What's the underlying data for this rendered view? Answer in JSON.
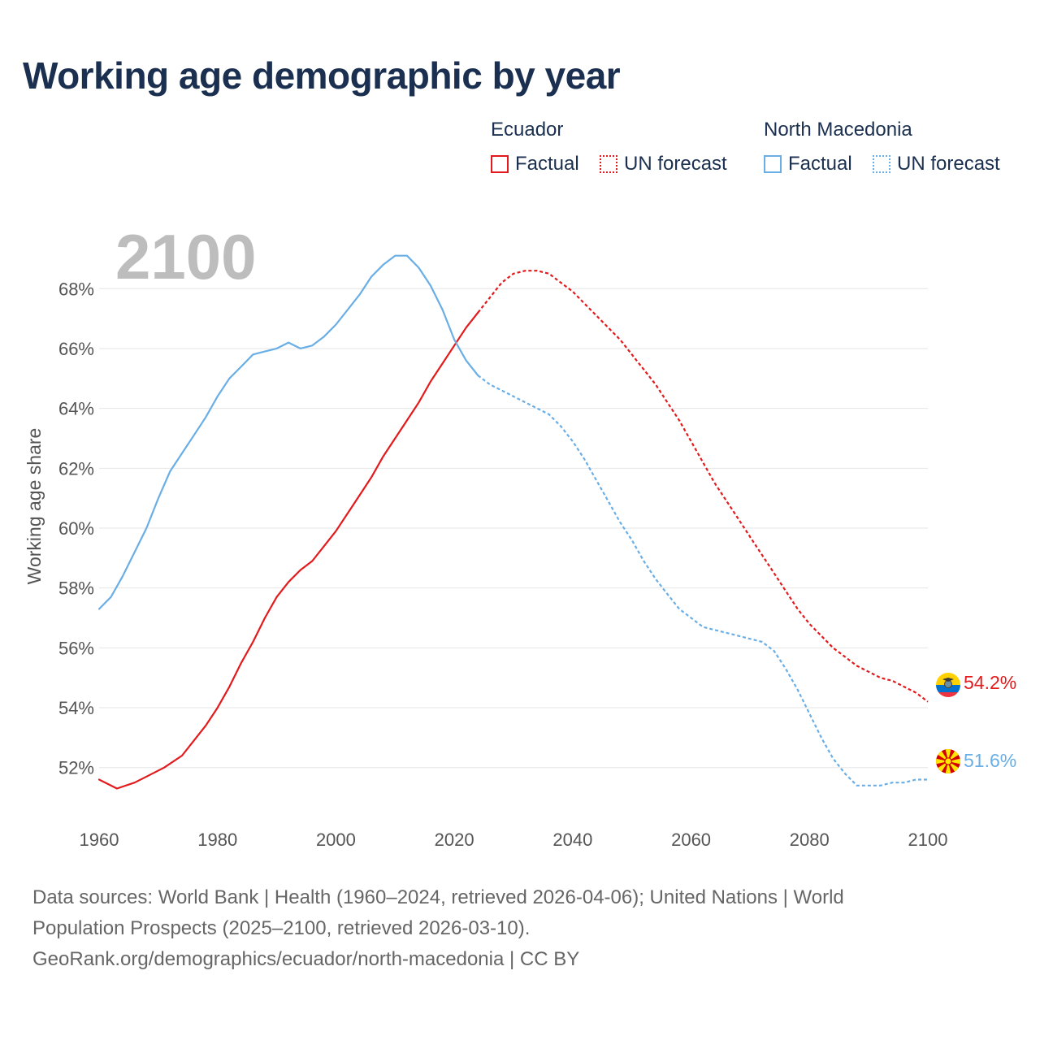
{
  "title": "Working age demographic by year",
  "legend": {
    "groups": [
      {
        "name": "Ecuador",
        "factual": "Factual",
        "forecast": "UN forecast",
        "color": "#e31a1c"
      },
      {
        "name": "North Macedonia",
        "factual": "Factual",
        "forecast": "UN forecast",
        "color": "#6aaee6"
      }
    ]
  },
  "year_label": "2100",
  "source": {
    "line1": "Data sources: World Bank | Health (1960–2024, retrieved 2026-04-06); United Nations | World",
    "line2": "Population Prospects (2025–2100, retrieved 2026-03-10).",
    "line3": "GeoRank.org/demographics/ecuador/north-macedonia | CC BY"
  },
  "chart_data": {
    "type": "line",
    "title": "Working age demographic by year",
    "xlabel": "",
    "ylabel": "Working age share",
    "xlim": [
      1960,
      2100
    ],
    "ylim": [
      50.5,
      69.5
    ],
    "x_ticks": [
      1960,
      1980,
      2000,
      2020,
      2040,
      2060,
      2080,
      2100
    ],
    "y_ticks": [
      52,
      54,
      56,
      58,
      60,
      62,
      64,
      66,
      68
    ],
    "y_tick_labels": [
      "52%",
      "54%",
      "56%",
      "58%",
      "60%",
      "62%",
      "64%",
      "66%",
      "68%"
    ],
    "factual_end": 2024,
    "grid": true,
    "series": [
      {
        "name": "Ecuador",
        "color": "#e31a1c",
        "end_label": "54.2%",
        "points": [
          [
            1960,
            51.6
          ],
          [
            1963,
            51.3
          ],
          [
            1966,
            51.5
          ],
          [
            1968,
            51.7
          ],
          [
            1971,
            52.0
          ],
          [
            1974,
            52.4
          ],
          [
            1976,
            52.9
          ],
          [
            1978,
            53.4
          ],
          [
            1980,
            54.0
          ],
          [
            1982,
            54.7
          ],
          [
            1984,
            55.5
          ],
          [
            1986,
            56.2
          ],
          [
            1988,
            57.0
          ],
          [
            1990,
            57.7
          ],
          [
            1992,
            58.2
          ],
          [
            1994,
            58.6
          ],
          [
            1996,
            58.9
          ],
          [
            1998,
            59.4
          ],
          [
            2000,
            59.9
          ],
          [
            2002,
            60.5
          ],
          [
            2004,
            61.1
          ],
          [
            2006,
            61.7
          ],
          [
            2008,
            62.4
          ],
          [
            2010,
            63.0
          ],
          [
            2012,
            63.6
          ],
          [
            2014,
            64.2
          ],
          [
            2016,
            64.9
          ],
          [
            2018,
            65.5
          ],
          [
            2020,
            66.1
          ],
          [
            2022,
            66.7
          ],
          [
            2024,
            67.2
          ],
          [
            2026,
            67.7
          ],
          [
            2028,
            68.2
          ],
          [
            2030,
            68.5
          ],
          [
            2032,
            68.6
          ],
          [
            2034,
            68.6
          ],
          [
            2036,
            68.5
          ],
          [
            2038,
            68.2
          ],
          [
            2040,
            67.9
          ],
          [
            2042,
            67.5
          ],
          [
            2044,
            67.1
          ],
          [
            2046,
            66.7
          ],
          [
            2048,
            66.3
          ],
          [
            2050,
            65.8
          ],
          [
            2052,
            65.3
          ],
          [
            2054,
            64.8
          ],
          [
            2056,
            64.2
          ],
          [
            2058,
            63.6
          ],
          [
            2060,
            62.9
          ],
          [
            2062,
            62.2
          ],
          [
            2064,
            61.5
          ],
          [
            2066,
            60.9
          ],
          [
            2068,
            60.3
          ],
          [
            2070,
            59.7
          ],
          [
            2072,
            59.1
          ],
          [
            2074,
            58.5
          ],
          [
            2076,
            57.9
          ],
          [
            2078,
            57.3
          ],
          [
            2080,
            56.8
          ],
          [
            2082,
            56.4
          ],
          [
            2084,
            56.0
          ],
          [
            2086,
            55.7
          ],
          [
            2088,
            55.4
          ],
          [
            2090,
            55.2
          ],
          [
            2092,
            55.0
          ],
          [
            2094,
            54.9
          ],
          [
            2096,
            54.7
          ],
          [
            2098,
            54.5
          ],
          [
            2100,
            54.2
          ]
        ]
      },
      {
        "name": "North Macedonia",
        "color": "#6aaee6",
        "end_label": "51.6%",
        "points": [
          [
            1960,
            57.3
          ],
          [
            1962,
            57.7
          ],
          [
            1964,
            58.4
          ],
          [
            1966,
            59.2
          ],
          [
            1968,
            60.0
          ],
          [
            1970,
            61.0
          ],
          [
            1972,
            61.9
          ],
          [
            1974,
            62.5
          ],
          [
            1976,
            63.1
          ],
          [
            1978,
            63.7
          ],
          [
            1980,
            64.4
          ],
          [
            1982,
            65.0
          ],
          [
            1984,
            65.4
          ],
          [
            1986,
            65.8
          ],
          [
            1988,
            65.9
          ],
          [
            1990,
            66.0
          ],
          [
            1992,
            66.2
          ],
          [
            1994,
            66.0
          ],
          [
            1996,
            66.1
          ],
          [
            1998,
            66.4
          ],
          [
            2000,
            66.8
          ],
          [
            2002,
            67.3
          ],
          [
            2004,
            67.8
          ],
          [
            2006,
            68.4
          ],
          [
            2008,
            68.8
          ],
          [
            2010,
            69.1
          ],
          [
            2012,
            69.1
          ],
          [
            2014,
            68.7
          ],
          [
            2016,
            68.1
          ],
          [
            2018,
            67.3
          ],
          [
            2020,
            66.3
          ],
          [
            2022,
            65.6
          ],
          [
            2024,
            65.1
          ],
          [
            2026,
            64.8
          ],
          [
            2028,
            64.6
          ],
          [
            2030,
            64.4
          ],
          [
            2032,
            64.2
          ],
          [
            2034,
            64.0
          ],
          [
            2036,
            63.8
          ],
          [
            2038,
            63.4
          ],
          [
            2040,
            62.9
          ],
          [
            2042,
            62.3
          ],
          [
            2044,
            61.6
          ],
          [
            2046,
            60.9
          ],
          [
            2048,
            60.2
          ],
          [
            2050,
            59.6
          ],
          [
            2052,
            58.9
          ],
          [
            2054,
            58.3
          ],
          [
            2056,
            57.8
          ],
          [
            2058,
            57.3
          ],
          [
            2060,
            57.0
          ],
          [
            2062,
            56.7
          ],
          [
            2064,
            56.6
          ],
          [
            2066,
            56.5
          ],
          [
            2068,
            56.4
          ],
          [
            2070,
            56.3
          ],
          [
            2072,
            56.2
          ],
          [
            2074,
            55.9
          ],
          [
            2076,
            55.3
          ],
          [
            2078,
            54.6
          ],
          [
            2080,
            53.8
          ],
          [
            2082,
            53.0
          ],
          [
            2084,
            52.3
          ],
          [
            2086,
            51.8
          ],
          [
            2088,
            51.4
          ],
          [
            2090,
            51.4
          ],
          [
            2092,
            51.4
          ],
          [
            2094,
            51.5
          ],
          [
            2096,
            51.5
          ],
          [
            2098,
            51.6
          ],
          [
            2100,
            51.6
          ]
        ]
      }
    ]
  }
}
